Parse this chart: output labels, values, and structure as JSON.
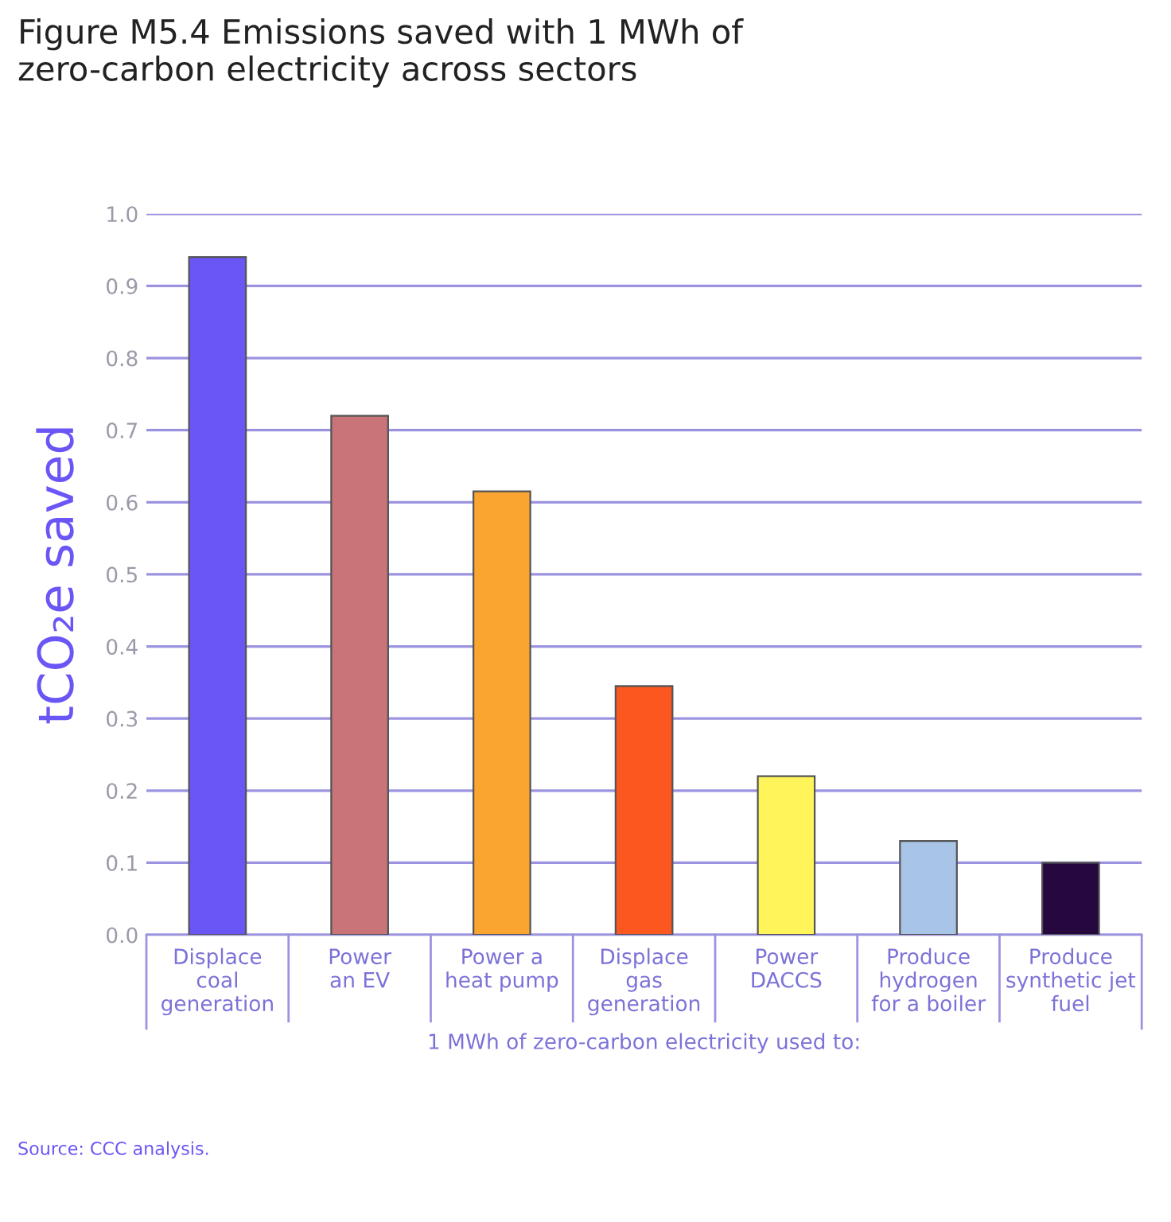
{
  "chart_data": {
    "type": "bar",
    "title": "Figure M5.4 Emissions saved with 1 MWh of\nzero-carbon electricity across sectors",
    "categories": [
      "Displace\ncoal\ngeneration",
      "Power\nan EV",
      "Power a\nheat pump",
      "Displace\ngas\ngeneration",
      "Power\nDACCS",
      "Produce\nhydrogen\nfor a boiler",
      "Produce\nsynthetic jet\nfuel"
    ],
    "values": [
      0.94,
      0.72,
      0.615,
      0.345,
      0.22,
      0.13,
      0.1
    ],
    "colors": [
      "#6a55f5",
      "#c87479",
      "#f9a52f",
      "#fd5720",
      "#fff55a",
      "#a8c4e6",
      "#26083f"
    ],
    "xlabel": "1 MWh of zero-carbon electricity used to:",
    "ylabel": "tCO₂e saved",
    "ylim": [
      0,
      1.0
    ],
    "yticks": [
      {
        "value": 0,
        "label": "0.0"
      },
      0.1,
      0.2,
      0.3,
      0.4,
      0.5,
      0.6,
      0.7,
      0.8,
      0.9,
      {
        "value": 1,
        "label": "1.0"
      }
    ],
    "grid": "y",
    "annotations": [
      "Source: CCC analysis."
    ]
  }
}
